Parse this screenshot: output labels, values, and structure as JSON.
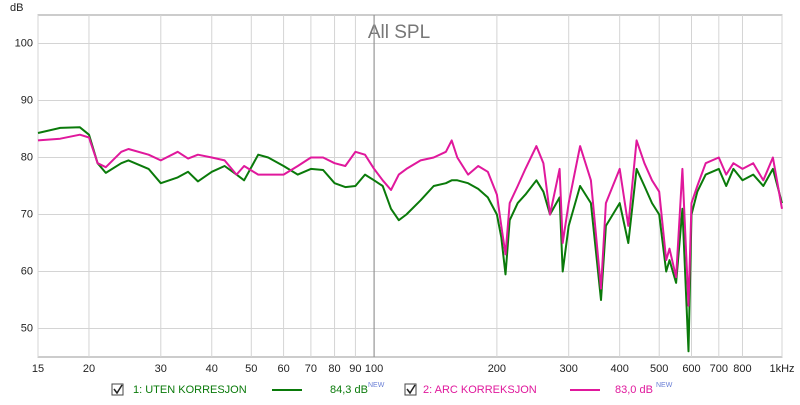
{
  "chart_data": {
    "type": "line",
    "title": "All SPL",
    "y_label": "dB",
    "x_scale": "log",
    "grid": true,
    "xlim": [
      15,
      1000
    ],
    "ylim": [
      45,
      105
    ],
    "xticks": [
      15,
      20,
      30,
      40,
      50,
      60,
      70,
      80,
      90,
      100,
      200,
      300,
      400,
      500,
      600,
      700,
      800,
      {
        "value": 1000,
        "label": "1kHz"
      }
    ],
    "yticks": [
      50,
      60,
      70,
      80,
      90,
      100
    ],
    "x": [
      15,
      17,
      19,
      20,
      21,
      22,
      24,
      25,
      28,
      30,
      33,
      35,
      37,
      40,
      43,
      46,
      48,
      52,
      55,
      60,
      65,
      70,
      75,
      80,
      85,
      90,
      95,
      100,
      105,
      110,
      115,
      120,
      130,
      140,
      150,
      155,
      160,
      170,
      180,
      190,
      200,
      205,
      210,
      215,
      225,
      235,
      250,
      260,
      270,
      285,
      290,
      300,
      320,
      340,
      360,
      370,
      400,
      420,
      440,
      460,
      480,
      500,
      520,
      530,
      550,
      570,
      590,
      600,
      620,
      650,
      700,
      730,
      760,
      800,
      850,
      900,
      950,
      1000
    ],
    "series": [
      {
        "name": "1: UTEN KORRESJON",
        "color": "#0a7a0a",
        "level_label": "84,3 dB",
        "badge": "NEW",
        "values": [
          84.3,
          85.2,
          85.3,
          84,
          79,
          77.3,
          79,
          79.5,
          78,
          75.5,
          76.5,
          77.5,
          75.8,
          77.5,
          78.5,
          77,
          76,
          80.5,
          80,
          78.5,
          77,
          78,
          77.8,
          75.5,
          74.8,
          75,
          77,
          76,
          75,
          71,
          69,
          70,
          72.5,
          75,
          75.5,
          76,
          76,
          75.5,
          74.5,
          73,
          70,
          66,
          59.5,
          69,
          72,
          73.5,
          76,
          74,
          70,
          73,
          60,
          68,
          75,
          72,
          55,
          68,
          72,
          65,
          78,
          75,
          72,
          70,
          60,
          62,
          58,
          71,
          46,
          70,
          74,
          77,
          78,
          75,
          78,
          76,
          77,
          75,
          78,
          72
        ]
      },
      {
        "name": "2: ARC KORREKSJON",
        "color": "#e0189c",
        "level_label": "83,0 dB",
        "badge": "NEW",
        "values": [
          83,
          83.3,
          84,
          83.5,
          79,
          78.3,
          81,
          81.5,
          80.5,
          79.5,
          81,
          79.8,
          80.5,
          80,
          79.5,
          77,
          78.5,
          77,
          77,
          77,
          78.5,
          80,
          80,
          79,
          78.5,
          81,
          80.5,
          78,
          76,
          74.3,
          77,
          78,
          79.5,
          80,
          81,
          83,
          80,
          77,
          78.5,
          77.5,
          73.5,
          68,
          63,
          72,
          75,
          78,
          82,
          79,
          70,
          78,
          65,
          72,
          82,
          76,
          57,
          72,
          78,
          68,
          83,
          79,
          76,
          74,
          62,
          64,
          59,
          78,
          54,
          72,
          75,
          79,
          80,
          77,
          79,
          78,
          79,
          76,
          80,
          71
        ]
      }
    ]
  }
}
